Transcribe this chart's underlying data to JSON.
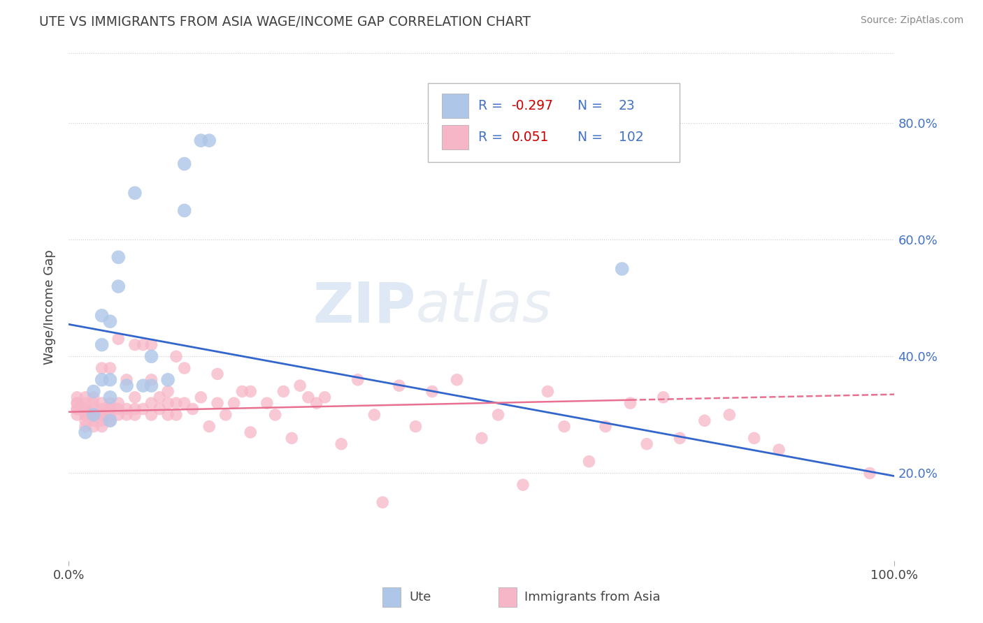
{
  "title": "UTE VS IMMIGRANTS FROM ASIA WAGE/INCOME GAP CORRELATION CHART",
  "source": "Source: ZipAtlas.com",
  "ylabel": "Wage/Income Gap",
  "ytick_vals": [
    0.2,
    0.4,
    0.6,
    0.8
  ],
  "xlim": [
    0.0,
    1.0
  ],
  "ylim": [
    0.05,
    0.92
  ],
  "legend_label1": "Ute",
  "legend_label2": "Immigrants from Asia",
  "r1_text": "-0.297",
  "n1_text": "23",
  "r2_text": "0.051",
  "n2_text": "102",
  "watermark": "ZIPAtlas",
  "blue_scatter_color": "#aec6e8",
  "pink_scatter_color": "#f7b6c8",
  "blue_line_color": "#3366CC",
  "pink_line_color": "#E87090",
  "legend_text_color": "#4472C4",
  "r_value_color": "#CC0000",
  "blue_line_y0": 0.455,
  "blue_line_y1": 0.195,
  "pink_line_y0": 0.305,
  "pink_line_y1": 0.335,
  "ute_x": [
    0.02,
    0.03,
    0.04,
    0.04,
    0.05,
    0.05,
    0.05,
    0.06,
    0.06,
    0.07,
    0.08,
    0.09,
    0.1,
    0.1,
    0.12,
    0.14,
    0.14,
    0.16,
    0.17,
    0.03,
    0.04,
    0.05,
    0.67
  ],
  "ute_y": [
    0.27,
    0.34,
    0.36,
    0.47,
    0.29,
    0.36,
    0.46,
    0.52,
    0.57,
    0.35,
    0.68,
    0.35,
    0.35,
    0.4,
    0.36,
    0.65,
    0.73,
    0.77,
    0.77,
    0.3,
    0.42,
    0.33,
    0.55
  ],
  "asia_x": [
    0.01,
    0.01,
    0.01,
    0.01,
    0.01,
    0.01,
    0.02,
    0.02,
    0.02,
    0.02,
    0.02,
    0.02,
    0.02,
    0.02,
    0.03,
    0.03,
    0.03,
    0.03,
    0.03,
    0.03,
    0.04,
    0.04,
    0.04,
    0.04,
    0.04,
    0.04,
    0.04,
    0.05,
    0.05,
    0.05,
    0.05,
    0.05,
    0.05,
    0.06,
    0.06,
    0.06,
    0.06,
    0.07,
    0.07,
    0.07,
    0.08,
    0.08,
    0.08,
    0.08,
    0.09,
    0.09,
    0.1,
    0.1,
    0.1,
    0.1,
    0.11,
    0.11,
    0.12,
    0.12,
    0.12,
    0.13,
    0.13,
    0.13,
    0.14,
    0.14,
    0.15,
    0.16,
    0.17,
    0.18,
    0.18,
    0.19,
    0.2,
    0.21,
    0.22,
    0.22,
    0.24,
    0.25,
    0.26,
    0.27,
    0.28,
    0.29,
    0.3,
    0.31,
    0.33,
    0.35,
    0.37,
    0.38,
    0.4,
    0.42,
    0.44,
    0.47,
    0.5,
    0.52,
    0.55,
    0.58,
    0.6,
    0.63,
    0.65,
    0.68,
    0.7,
    0.72,
    0.74,
    0.77,
    0.8,
    0.83,
    0.86,
    0.97
  ],
  "asia_y": [
    0.3,
    0.31,
    0.31,
    0.32,
    0.32,
    0.33,
    0.28,
    0.29,
    0.3,
    0.3,
    0.31,
    0.31,
    0.32,
    0.33,
    0.28,
    0.29,
    0.3,
    0.31,
    0.32,
    0.33,
    0.28,
    0.29,
    0.3,
    0.3,
    0.31,
    0.32,
    0.38,
    0.29,
    0.3,
    0.31,
    0.31,
    0.32,
    0.38,
    0.3,
    0.31,
    0.32,
    0.43,
    0.3,
    0.31,
    0.36,
    0.3,
    0.31,
    0.33,
    0.42,
    0.31,
    0.42,
    0.3,
    0.32,
    0.36,
    0.42,
    0.31,
    0.33,
    0.3,
    0.32,
    0.34,
    0.3,
    0.32,
    0.4,
    0.32,
    0.38,
    0.31,
    0.33,
    0.28,
    0.32,
    0.37,
    0.3,
    0.32,
    0.34,
    0.27,
    0.34,
    0.32,
    0.3,
    0.34,
    0.26,
    0.35,
    0.33,
    0.32,
    0.33,
    0.25,
    0.36,
    0.3,
    0.15,
    0.35,
    0.28,
    0.34,
    0.36,
    0.26,
    0.3,
    0.18,
    0.34,
    0.28,
    0.22,
    0.28,
    0.32,
    0.25,
    0.33,
    0.26,
    0.29,
    0.3,
    0.26,
    0.24,
    0.2
  ]
}
